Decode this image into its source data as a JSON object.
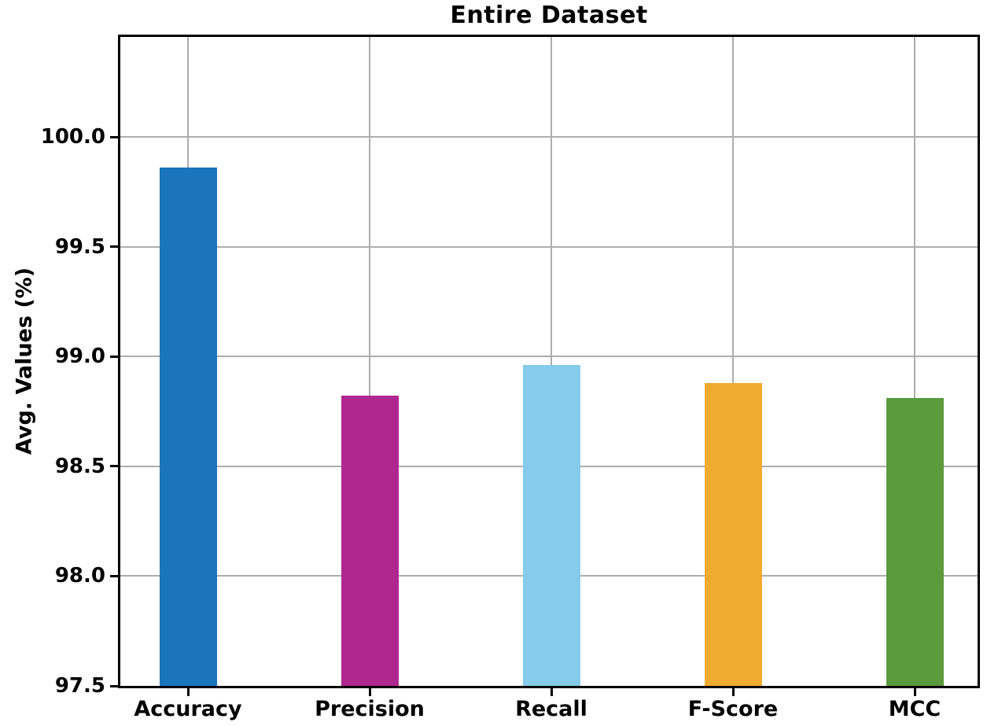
{
  "chart_data": {
    "type": "bar",
    "title": "Entire Dataset",
    "xlabel": "",
    "ylabel": "Avg. Values (%)",
    "categories": [
      "Accuracy",
      "Precision",
      "Recall",
      "F-Score",
      "MCC"
    ],
    "values": [
      99.86,
      98.82,
      98.96,
      98.88,
      98.81
    ],
    "bar_colors": [
      "#1b75bc",
      "#b02790",
      "#86cbe9",
      "#eeab2f",
      "#5b9a3d"
    ],
    "ylim": [
      97.5,
      100.455
    ],
    "yticks": [
      100.0,
      99.5,
      99.0,
      98.5,
      98.0,
      97.5
    ],
    "ytick_labels": [
      "100.0",
      "99.5",
      "99.0",
      "98.5",
      "98.0",
      "97.5"
    ],
    "grid": true,
    "legend": "none",
    "grid_color": "#adadad",
    "spine_color": "#000000",
    "text_color": "#000000",
    "background_color": "#ffffff"
  }
}
